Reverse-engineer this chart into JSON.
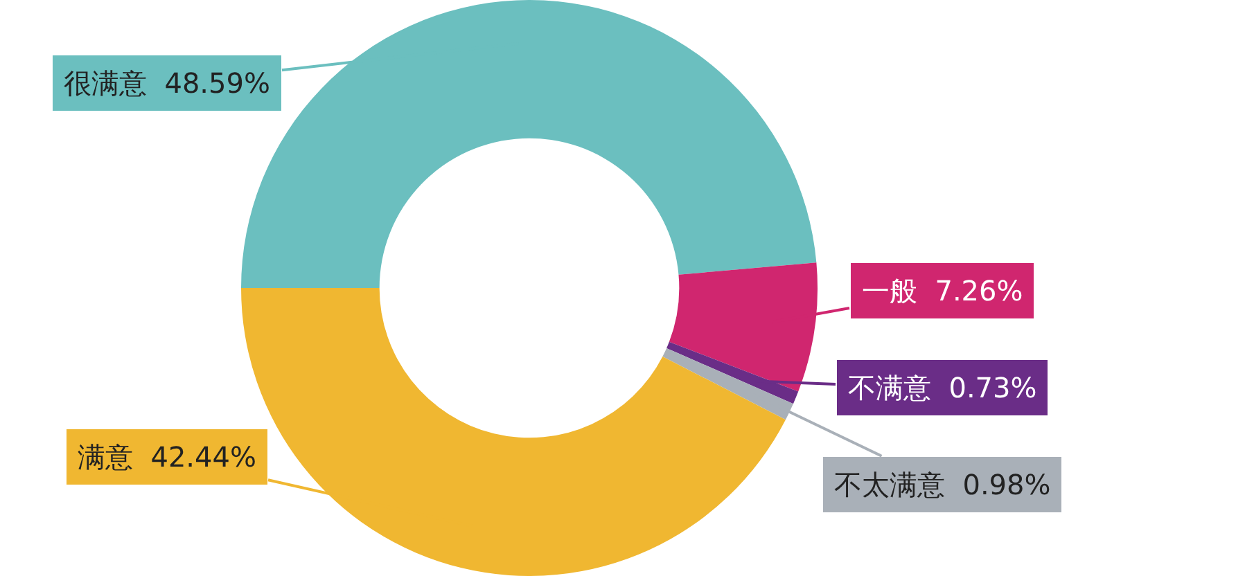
{
  "chart_data": {
    "type": "donut",
    "categories": [
      "很满意",
      "一般",
      "不满意",
      "不太满意",
      "满意"
    ],
    "values": [
      48.59,
      7.26,
      0.73,
      0.98,
      42.44
    ],
    "colors": [
      "#6bbfbf",
      "#d0266f",
      "#6a2d87",
      "#a9b0b8",
      "#f0b731"
    ],
    "value_labels": [
      "48.59%",
      "7.26%",
      "0.73%",
      "0.98%",
      "42.44%"
    ]
  }
}
